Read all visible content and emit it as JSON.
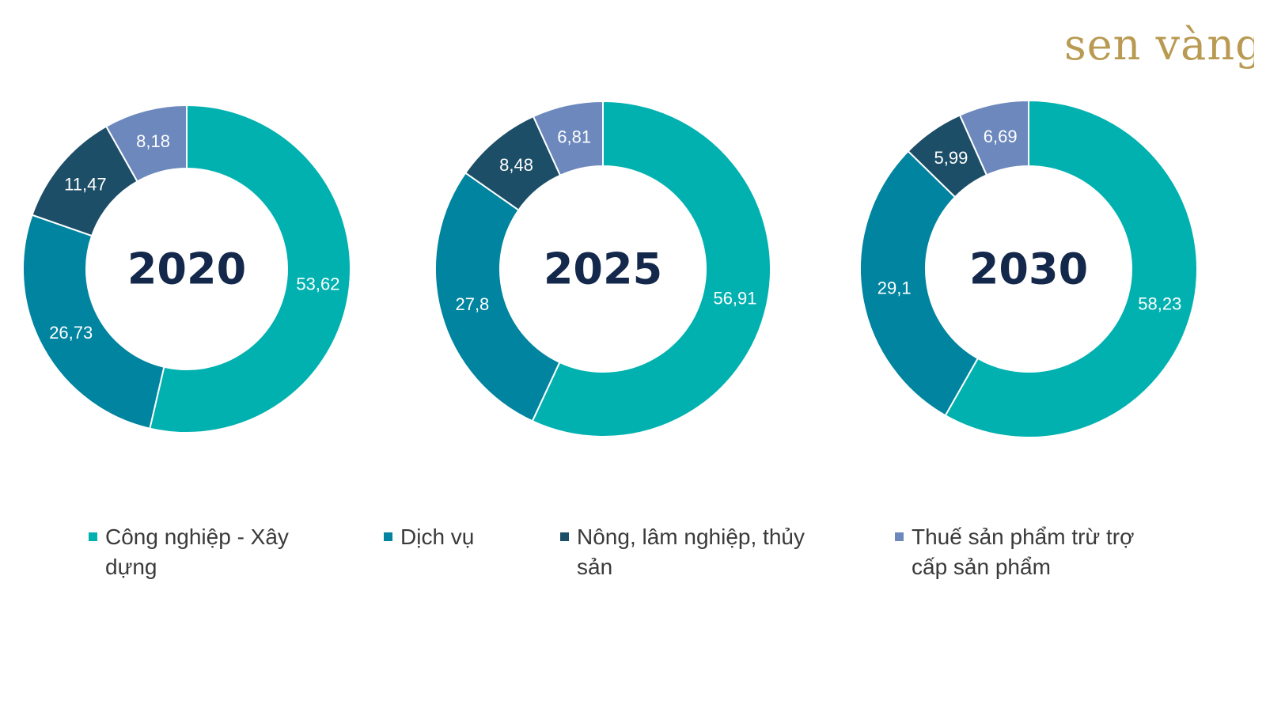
{
  "brand": {
    "logo_text": "sen vàng",
    "logo_color": "#b99a52"
  },
  "colors": {
    "Công nghiệp - Xây dựng": "#00b1b0",
    "Dịch vụ": "#00849f",
    "Nông, lâm nghiệp, thủy sản": "#1d4e67",
    "Thuế sản phẩm trừ trợ cấp sản phẩm": "#6c88bd"
  },
  "legend": {
    "items": [
      {
        "label_line1": "Công nghiệp - Xây",
        "label_line2": "dựng",
        "color": "#00b1b0"
      },
      {
        "label_line1": "Dịch vụ",
        "label_line2": "",
        "color": "#00849f"
      },
      {
        "label_line1": "Nông, lâm nghiệp, thủy",
        "label_line2": "sản",
        "color": "#1d4e67"
      },
      {
        "label_line1": "Thuế sản phẩm trừ trợ",
        "label_line2": "cấp sản phẩm",
        "color": "#6c88bd"
      }
    ]
  },
  "chart_data": [
    {
      "type": "pie",
      "center_label": "2020",
      "categories": [
        "Công nghiệp - Xây dựng",
        "Dịch vụ",
        "Nông, lâm nghiệp, thủy sản",
        "Thuế sản phẩm trừ trợ cấp sản phẩm"
      ],
      "values": [
        53.62,
        26.73,
        11.47,
        8.18
      ],
      "data_labels": [
        "53,62",
        "26,73",
        "11,47",
        "8,18"
      ]
    },
    {
      "type": "pie",
      "center_label": "2025",
      "categories": [
        "Công nghiệp - Xây dựng",
        "Dịch vụ",
        "Nông, lâm nghiệp, thủy sản",
        "Thuế sản phẩm trừ trợ cấp sản phẩm"
      ],
      "values": [
        56.91,
        27.8,
        8.48,
        6.81
      ],
      "data_labels": [
        "56,91",
        "27,8",
        "8,48",
        "6,81"
      ]
    },
    {
      "type": "pie",
      "center_label": "2030",
      "categories": [
        "Công nghiệp - Xây dựng",
        "Dịch vụ",
        "Nông, lâm nghiệp, thủy sản",
        "Thuế sản phẩm trừ trợ cấp sản phẩm"
      ],
      "values": [
        58.23,
        29.1,
        5.99,
        6.69
      ],
      "data_labels": [
        "58,23",
        "29,1",
        "5,99",
        "6,69"
      ]
    }
  ]
}
